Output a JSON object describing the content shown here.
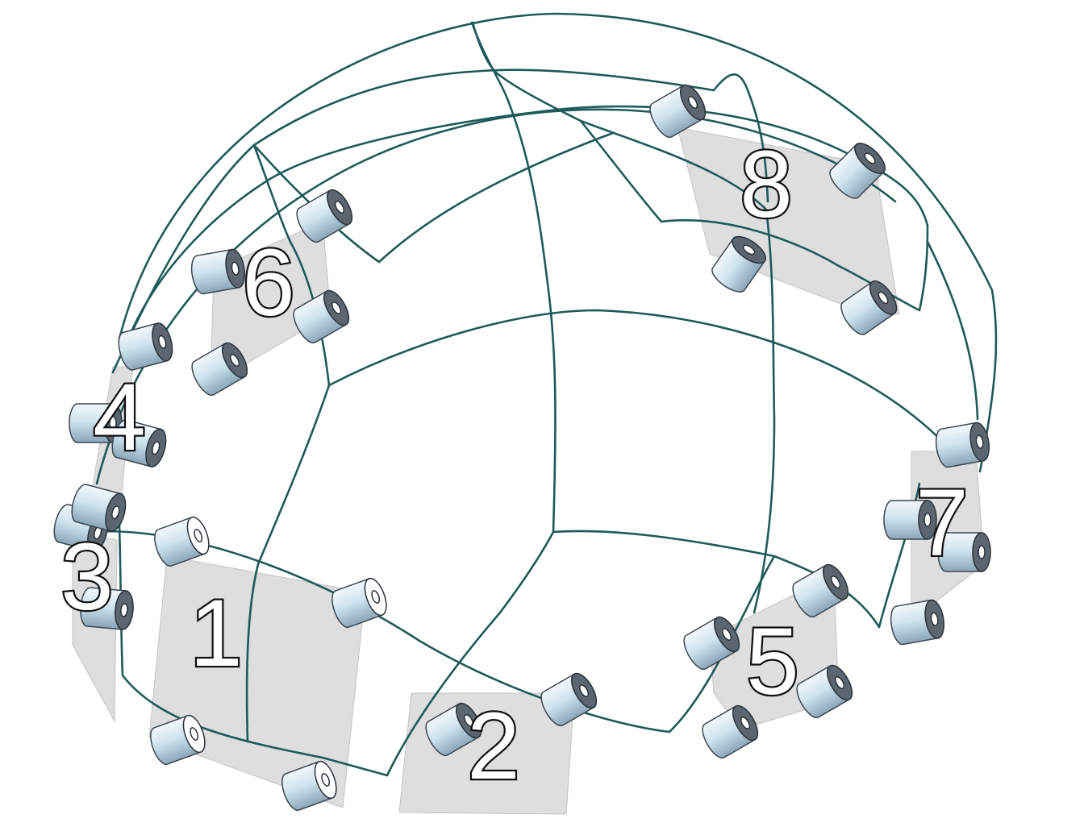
{
  "diagram": {
    "panels": [
      {
        "id": "1",
        "label": "1"
      },
      {
        "id": "2",
        "label": "2"
      },
      {
        "id": "3",
        "label": "3"
      },
      {
        "id": "4",
        "label": "4"
      },
      {
        "id": "5",
        "label": "5"
      },
      {
        "id": "6",
        "label": "6"
      },
      {
        "id": "7",
        "label": "7"
      },
      {
        "id": "8",
        "label": "8"
      }
    ],
    "colors": {
      "wireframe": "#1f5a5a",
      "panel_fill": "#dedede",
      "spacer_body": "#c9e0ee",
      "spacer_dark": "#3b4650",
      "label_fill": "#ffffff",
      "label_outline": "#111111"
    }
  }
}
